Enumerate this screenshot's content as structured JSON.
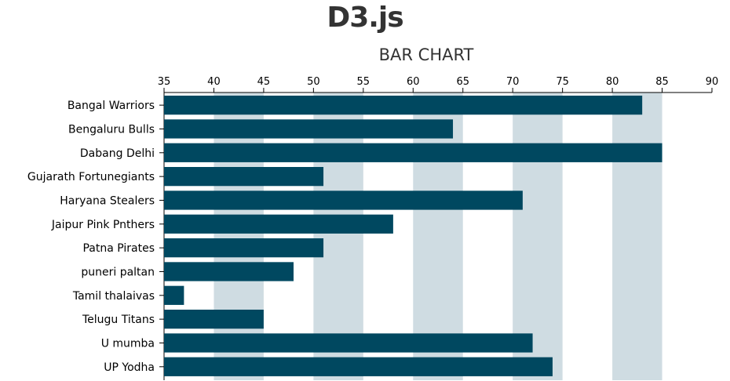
{
  "page": {
    "title": "D3.js"
  },
  "chart_data": {
    "type": "bar",
    "orientation": "horizontal",
    "title": "BAR CHART",
    "xlabel": "",
    "ylabel": "",
    "xlim": [
      35,
      90
    ],
    "x_ticks": [
      35,
      40,
      45,
      50,
      55,
      60,
      65,
      70,
      75,
      80,
      85,
      90
    ],
    "x_axis_position": "top",
    "alternating_band_color": "#cfdce2",
    "bar_color": "#004860",
    "grid": "alternating vertical bands",
    "categories": [
      "Bangal Warriors",
      "Bengaluru Bulls",
      "Dabang Delhi",
      "Gujarath Fortunegiants",
      "Haryana Stealers",
      "Jaipur Pink Pnthers",
      "Patna Pirates",
      "puneri paltan",
      "Tamil thalaivas",
      "Telugu Titans",
      "U mumba",
      "UP Yodha"
    ],
    "values": [
      83,
      64,
      85,
      51,
      71,
      58,
      51,
      48,
      37,
      45,
      72,
      74
    ]
  }
}
